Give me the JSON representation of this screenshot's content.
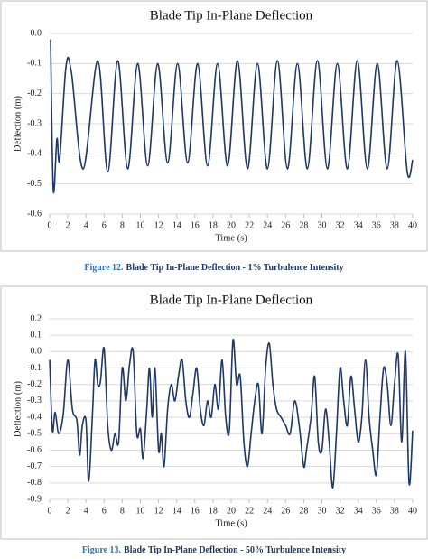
{
  "chart_data": [
    {
      "type": "line",
      "title": "Blade Tip In-Plane Deflection",
      "x_label": "Time (s)",
      "y_label": "Deflection (m)",
      "xlim": [
        0,
        40
      ],
      "xticks": [
        0,
        2,
        4,
        6,
        8,
        10,
        12,
        14,
        16,
        18,
        20,
        22,
        24,
        26,
        28,
        30,
        32,
        34,
        36,
        38,
        40
      ],
      "ylim": [
        -0.6,
        0
      ],
      "yticks": [
        {
          "value": 0,
          "label": "0.0"
        },
        -0.1,
        -0.2,
        -0.3,
        -0.4,
        -0.5,
        -0.6
      ],
      "grid": true,
      "series": [
        {
          "color": "#1f3864",
          "x": [
            0.1,
            0.4,
            0.8,
            1.1,
            1.8,
            2.4,
            3.7,
            5.3,
            6.4,
            7.5,
            8.6,
            9.7,
            10.8,
            11.9,
            13.0,
            14.1,
            15.2,
            16.3,
            17.4,
            18.5,
            19.6,
            20.7,
            21.8,
            22.9,
            24.0,
            25.1,
            26.2,
            27.3,
            28.4,
            29.5,
            30.6,
            31.7,
            32.8,
            33.9,
            35.0,
            36.1,
            37.2,
            38.3,
            39.4,
            40.0
          ],
          "values": [
            -0.02,
            -0.52,
            -0.35,
            -0.42,
            -0.11,
            -0.13,
            -0.45,
            -0.09,
            -0.46,
            -0.09,
            -0.45,
            -0.1,
            -0.44,
            -0.1,
            -0.43,
            -0.1,
            -0.43,
            -0.1,
            -0.44,
            -0.1,
            -0.44,
            -0.09,
            -0.45,
            -0.1,
            -0.45,
            -0.09,
            -0.45,
            -0.1,
            -0.45,
            -0.09,
            -0.45,
            -0.1,
            -0.45,
            -0.09,
            -0.45,
            -0.1,
            -0.45,
            -0.09,
            -0.46,
            -0.42
          ]
        }
      ]
    },
    {
      "type": "line",
      "title": "Blade Tip In-Plane Deflection",
      "x_label": "Time (s)",
      "y_label": "Deflection (m)",
      "xlim": [
        0,
        40
      ],
      "xticks": [
        0,
        2,
        4,
        6,
        8,
        10,
        12,
        14,
        16,
        18,
        20,
        22,
        24,
        26,
        28,
        30,
        32,
        34,
        36,
        38,
        40
      ],
      "ylim": [
        -0.9,
        0.2
      ],
      "yticks": [
        0.2,
        0.1,
        {
          "value": 0,
          "label": "0.0"
        },
        -0.1,
        -0.2,
        -0.3,
        -0.4,
        -0.5,
        -0.6,
        -0.7,
        -0.8,
        -0.9
      ],
      "grid": true,
      "series": [
        {
          "color": "#1f3864",
          "x": [
            0,
            0.3,
            0.6,
            1,
            1.5,
            2,
            2.5,
            3,
            3.3,
            3.6,
            4,
            4.3,
            4.7,
            5,
            5.3,
            5.6,
            6,
            6.4,
            6.8,
            7.2,
            7.6,
            8,
            8.4,
            8.8,
            9.2,
            9.6,
            10,
            10.3,
            10.7,
            11,
            11.3,
            11.6,
            12,
            12.3,
            12.6,
            13,
            13.4,
            13.8,
            14.2,
            14.6,
            15,
            15.4,
            15.8,
            16.2,
            16.6,
            17,
            17.4,
            17.8,
            18.2,
            18.6,
            19,
            19.4,
            19.8,
            20.2,
            20.6,
            21,
            21.4,
            21.8,
            22.2,
            22.6,
            23,
            23.4,
            23.8,
            24.2,
            24.6,
            25,
            25.5,
            26,
            26.5,
            27,
            27.5,
            28,
            28.3,
            28.8,
            29.2,
            29.6,
            30,
            30.4,
            30.8,
            31.2,
            31.6,
            32,
            32.4,
            32.8,
            33.2,
            33.6,
            34,
            34.4,
            34.8,
            35.2,
            35.6,
            36,
            36.4,
            36.8,
            37.2,
            37.6,
            38,
            38.4,
            38.8,
            39.2,
            39.6,
            40
          ],
          "values": [
            -0.05,
            -0.48,
            -0.37,
            -0.5,
            -0.38,
            -0.05,
            -0.35,
            -0.42,
            -0.63,
            -0.45,
            -0.42,
            -0.79,
            -0.4,
            -0.05,
            -0.2,
            -0.18,
            0.02,
            -0.45,
            -0.6,
            -0.5,
            -0.55,
            -0.1,
            -0.3,
            -0.08,
            0.0,
            -0.5,
            -0.47,
            -0.65,
            -0.35,
            -0.1,
            -0.4,
            -0.1,
            -0.6,
            -0.5,
            -0.7,
            -0.35,
            -0.2,
            -0.3,
            -0.15,
            -0.05,
            -0.3,
            -0.4,
            -0.25,
            -0.1,
            -0.35,
            -0.45,
            -0.3,
            -0.4,
            -0.2,
            -0.35,
            -0.05,
            -0.4,
            -0.48,
            0.07,
            -0.2,
            -0.15,
            -0.55,
            -0.7,
            -0.5,
            -0.3,
            -0.2,
            -0.5,
            -0.1,
            0.05,
            -0.2,
            -0.35,
            -0.4,
            -0.45,
            -0.5,
            -0.3,
            -0.45,
            -0.7,
            -0.6,
            -0.4,
            -0.15,
            -0.55,
            -0.6,
            -0.35,
            -0.55,
            -0.83,
            -0.5,
            -0.1,
            -0.3,
            -0.45,
            -0.15,
            -0.35,
            -0.55,
            -0.4,
            -0.05,
            -0.4,
            -0.6,
            -0.75,
            -0.4,
            -0.1,
            -0.2,
            -0.45,
            -0.2,
            -0.02,
            -0.55,
            0.0,
            -0.8,
            -0.48
          ]
        }
      ]
    }
  ],
  "captions": [
    {
      "label": "Figure 12.",
      "text": "Blade Tip In-Plane Deflection - 1% Turbulence Intensity"
    },
    {
      "label": "Figure 13.",
      "text": "Blade Tip In-Plane Deflection - 50% Turbulence Intensity"
    }
  ]
}
